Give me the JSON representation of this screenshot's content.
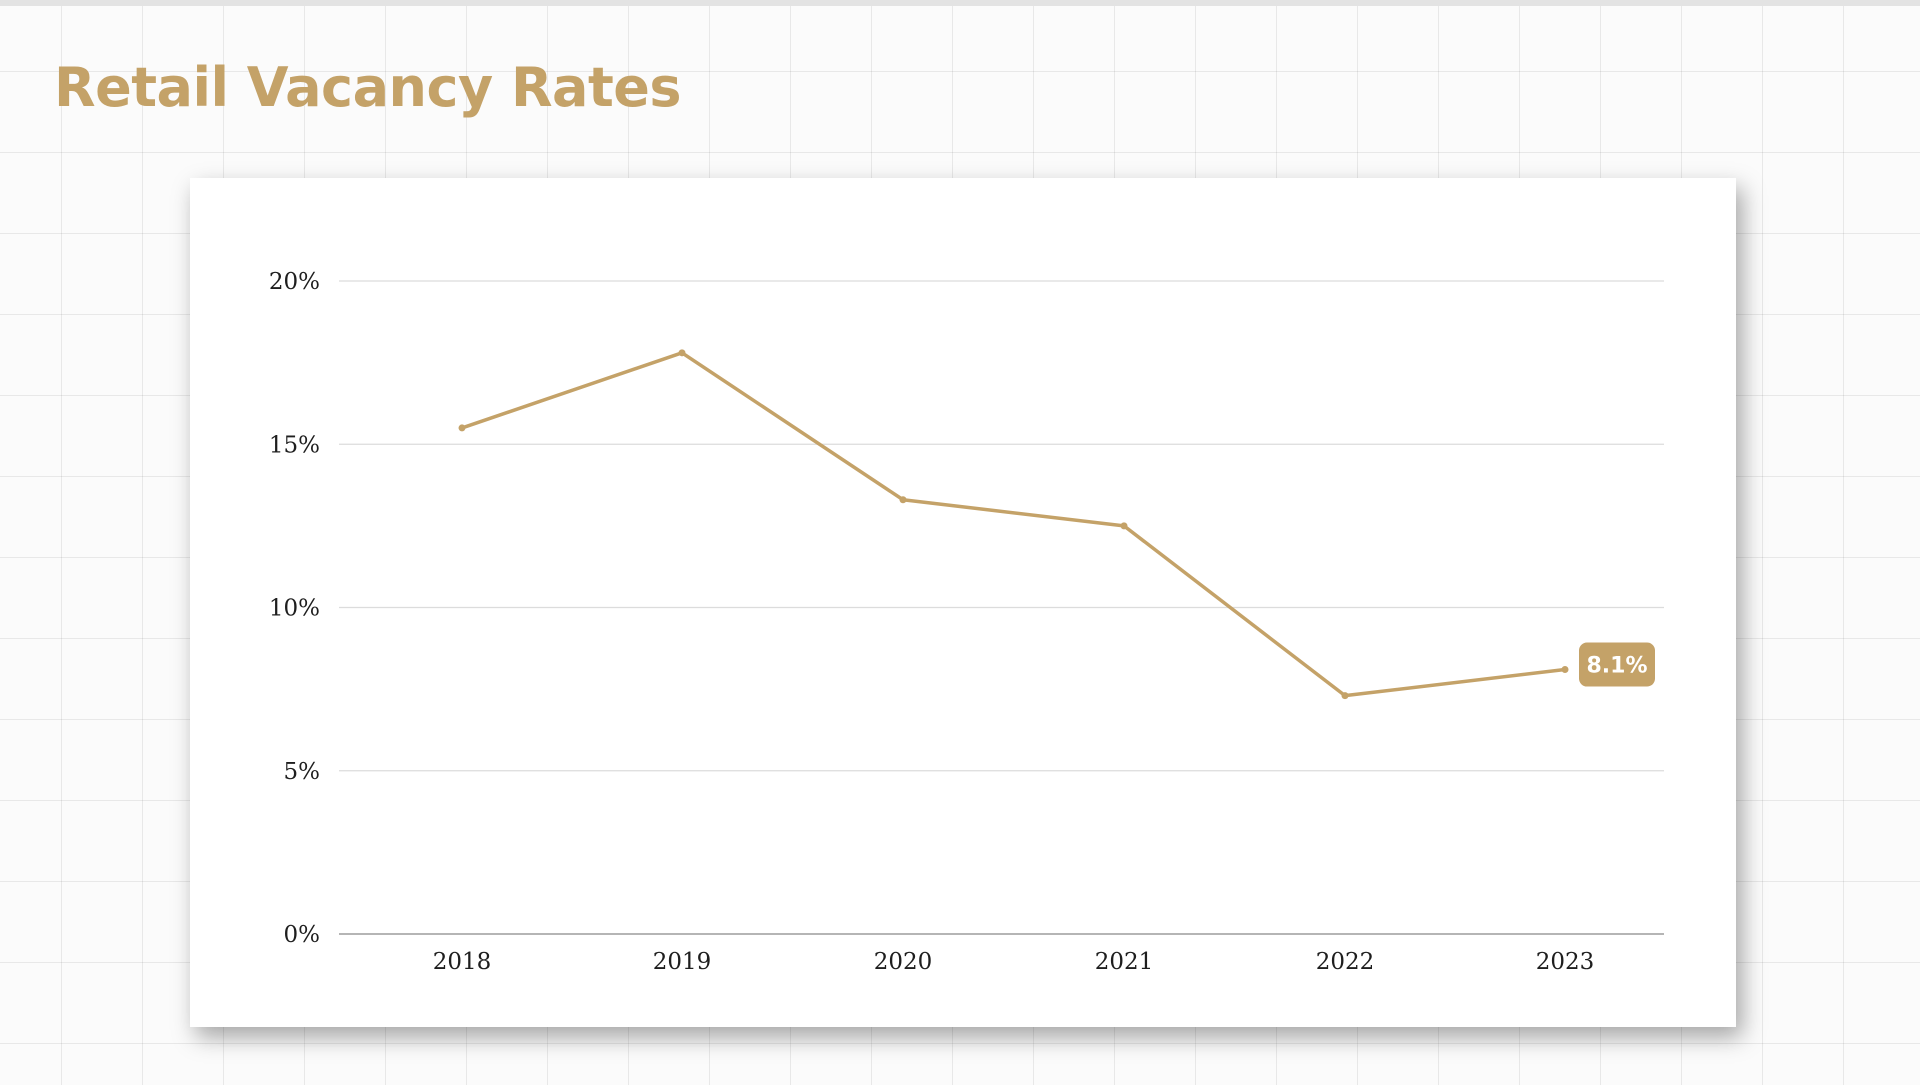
{
  "title": "Retail Vacancy Rates",
  "colors": {
    "accent": "#c4a268",
    "grid": "#dcdcdc",
    "axis": "#b5b5b5",
    "text": "#1e1e1e"
  },
  "chart_data": {
    "type": "line",
    "title": "Retail Vacancy Rates",
    "xlabel": "",
    "ylabel": "",
    "categories": [
      "2018",
      "2019",
      "2020",
      "2021",
      "2022",
      "2023"
    ],
    "series": [
      {
        "name": "Retail Vacancy Rate",
        "values": [
          15.5,
          17.8,
          13.3,
          12.5,
          7.3,
          8.1
        ]
      }
    ],
    "ylim": [
      0,
      20
    ],
    "yticks": [
      0,
      5,
      10,
      15,
      20
    ],
    "ytick_labels": [
      "0%",
      "5%",
      "10%",
      "15%",
      "20%"
    ],
    "grid": true,
    "legend": "none",
    "annotation": {
      "index": 5,
      "label": "8.1%"
    }
  }
}
